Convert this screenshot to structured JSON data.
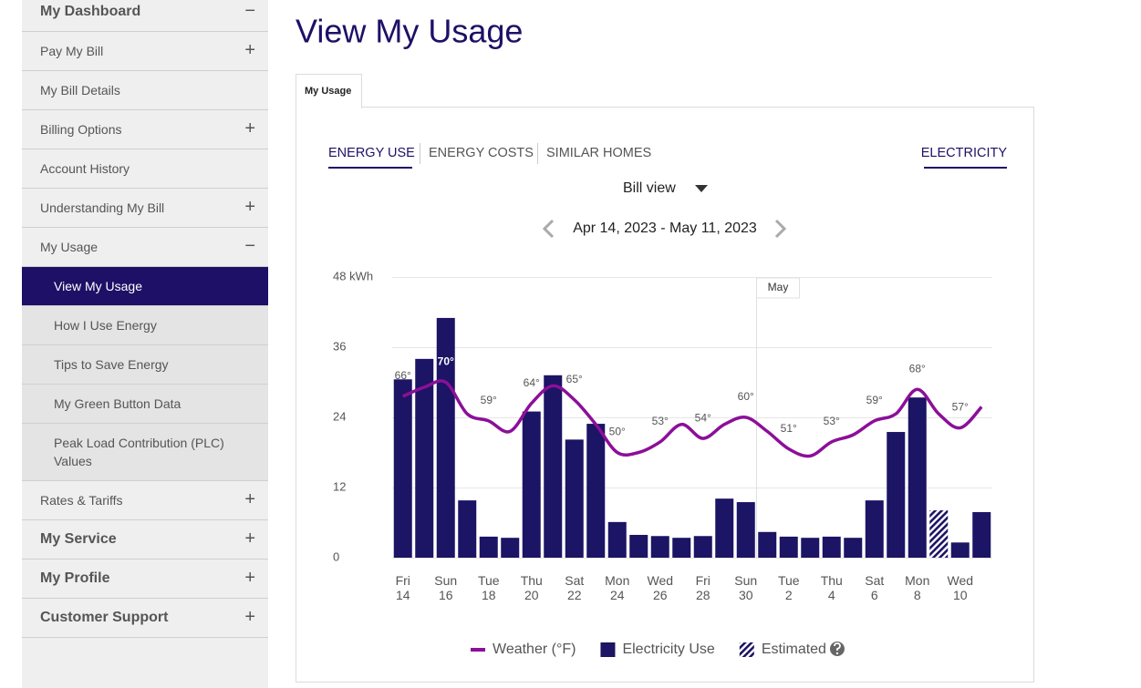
{
  "sidebar": {
    "items": [
      {
        "label": "My Dashboard",
        "toggle": "−",
        "style": "main"
      },
      {
        "label": "Pay My Bill",
        "toggle": "+",
        "style": "item"
      },
      {
        "label": "My Bill Details",
        "style": "item"
      },
      {
        "label": "Billing Options",
        "toggle": "+",
        "style": "item"
      },
      {
        "label": "Account History",
        "style": "item"
      },
      {
        "label": "Understanding My Bill",
        "toggle": "+",
        "style": "item"
      },
      {
        "label": "My Usage",
        "toggle": "−",
        "style": "item"
      },
      {
        "label": "View My Usage",
        "style": "active"
      },
      {
        "label": "How I Use Energy",
        "style": "sub"
      },
      {
        "label": "Tips to Save Energy",
        "style": "sub"
      },
      {
        "label": "My Green Button Data",
        "style": "sub"
      },
      {
        "label": "Peak Load Contribution (PLC) Values",
        "style": "sub"
      },
      {
        "label": "Rates & Tariffs",
        "toggle": "+",
        "style": "item"
      },
      {
        "label": "My Service",
        "toggle": "+",
        "style": "main"
      },
      {
        "label": "My Profile",
        "toggle": "+",
        "style": "main"
      },
      {
        "label": "Customer Support",
        "toggle": "+",
        "style": "main"
      }
    ]
  },
  "header": {
    "title": "View My Usage"
  },
  "tab": "My Usage",
  "usage_tabs": [
    "ENERGY USE",
    "ENERGY COSTS",
    "SIMILAR HOMES"
  ],
  "fuel": "ELECTRICITY",
  "view": "Bill view",
  "date_range": "Apr 14, 2023 - May 11, 2023",
  "chart_data": {
    "type": "bar",
    "categories": [
      "Fri 14",
      null,
      "Sun 16",
      null,
      "Tue 18",
      null,
      "Thu 20",
      null,
      "Sat 22",
      null,
      "Mon 24",
      null,
      "Wed 26",
      null,
      "Fri 28",
      null,
      "Sun 30",
      null,
      "Tue 2",
      null,
      "Thu 4",
      null,
      "Sat 6",
      null,
      "Mon 8",
      null,
      "Wed 10",
      null
    ],
    "series": [
      {
        "name": "Weather (°F)",
        "type": "line",
        "axis": "y2",
        "color": "#8b0f99",
        "values": [
          66,
          68.6,
          70,
          61,
          59,
          56,
          64,
          69,
          65,
          58,
          50,
          50,
          53,
          58,
          54,
          58,
          60,
          56,
          51,
          49,
          53,
          55,
          59,
          61,
          68,
          61,
          57,
          63
        ],
        "value_labels": [
          "66°",
          null,
          "70°",
          null,
          "59°",
          null,
          "64°",
          null,
          "65°",
          null,
          "50°",
          null,
          "53°",
          null,
          "54°",
          null,
          "60°",
          null,
          "51°",
          null,
          "53°",
          null,
          "59°",
          null,
          "68°",
          null,
          "57°",
          null
        ]
      },
      {
        "name": "Electricity Use",
        "color": "#1c1464",
        "values": [
          30.5,
          34,
          41,
          9.8,
          3.6,
          3.4,
          25,
          31.2,
          20.2,
          22.9,
          6.1,
          3.9,
          3.7,
          3.4,
          3.7,
          10.1,
          9.5,
          4.4,
          3.6,
          3.4,
          3.6,
          3.4,
          9.8,
          21.5,
          27.4,
          null,
          2.6,
          7.8
        ]
      },
      {
        "name": "Estimated",
        "color": "#1c1464",
        "pattern": "hatch",
        "values": [
          null,
          null,
          null,
          null,
          null,
          null,
          null,
          null,
          null,
          null,
          null,
          null,
          null,
          null,
          null,
          null,
          null,
          null,
          null,
          null,
          null,
          null,
          null,
          null,
          null,
          8.1,
          null,
          null
        ]
      }
    ],
    "ylim": [
      0,
      48
    ],
    "yticks": [
      0,
      12,
      24,
      36,
      {
        "value": 48,
        "label": "48 kWh"
      }
    ],
    "y2lim": [
      20,
      100
    ],
    "grid": true,
    "annotation": "May"
  }
}
